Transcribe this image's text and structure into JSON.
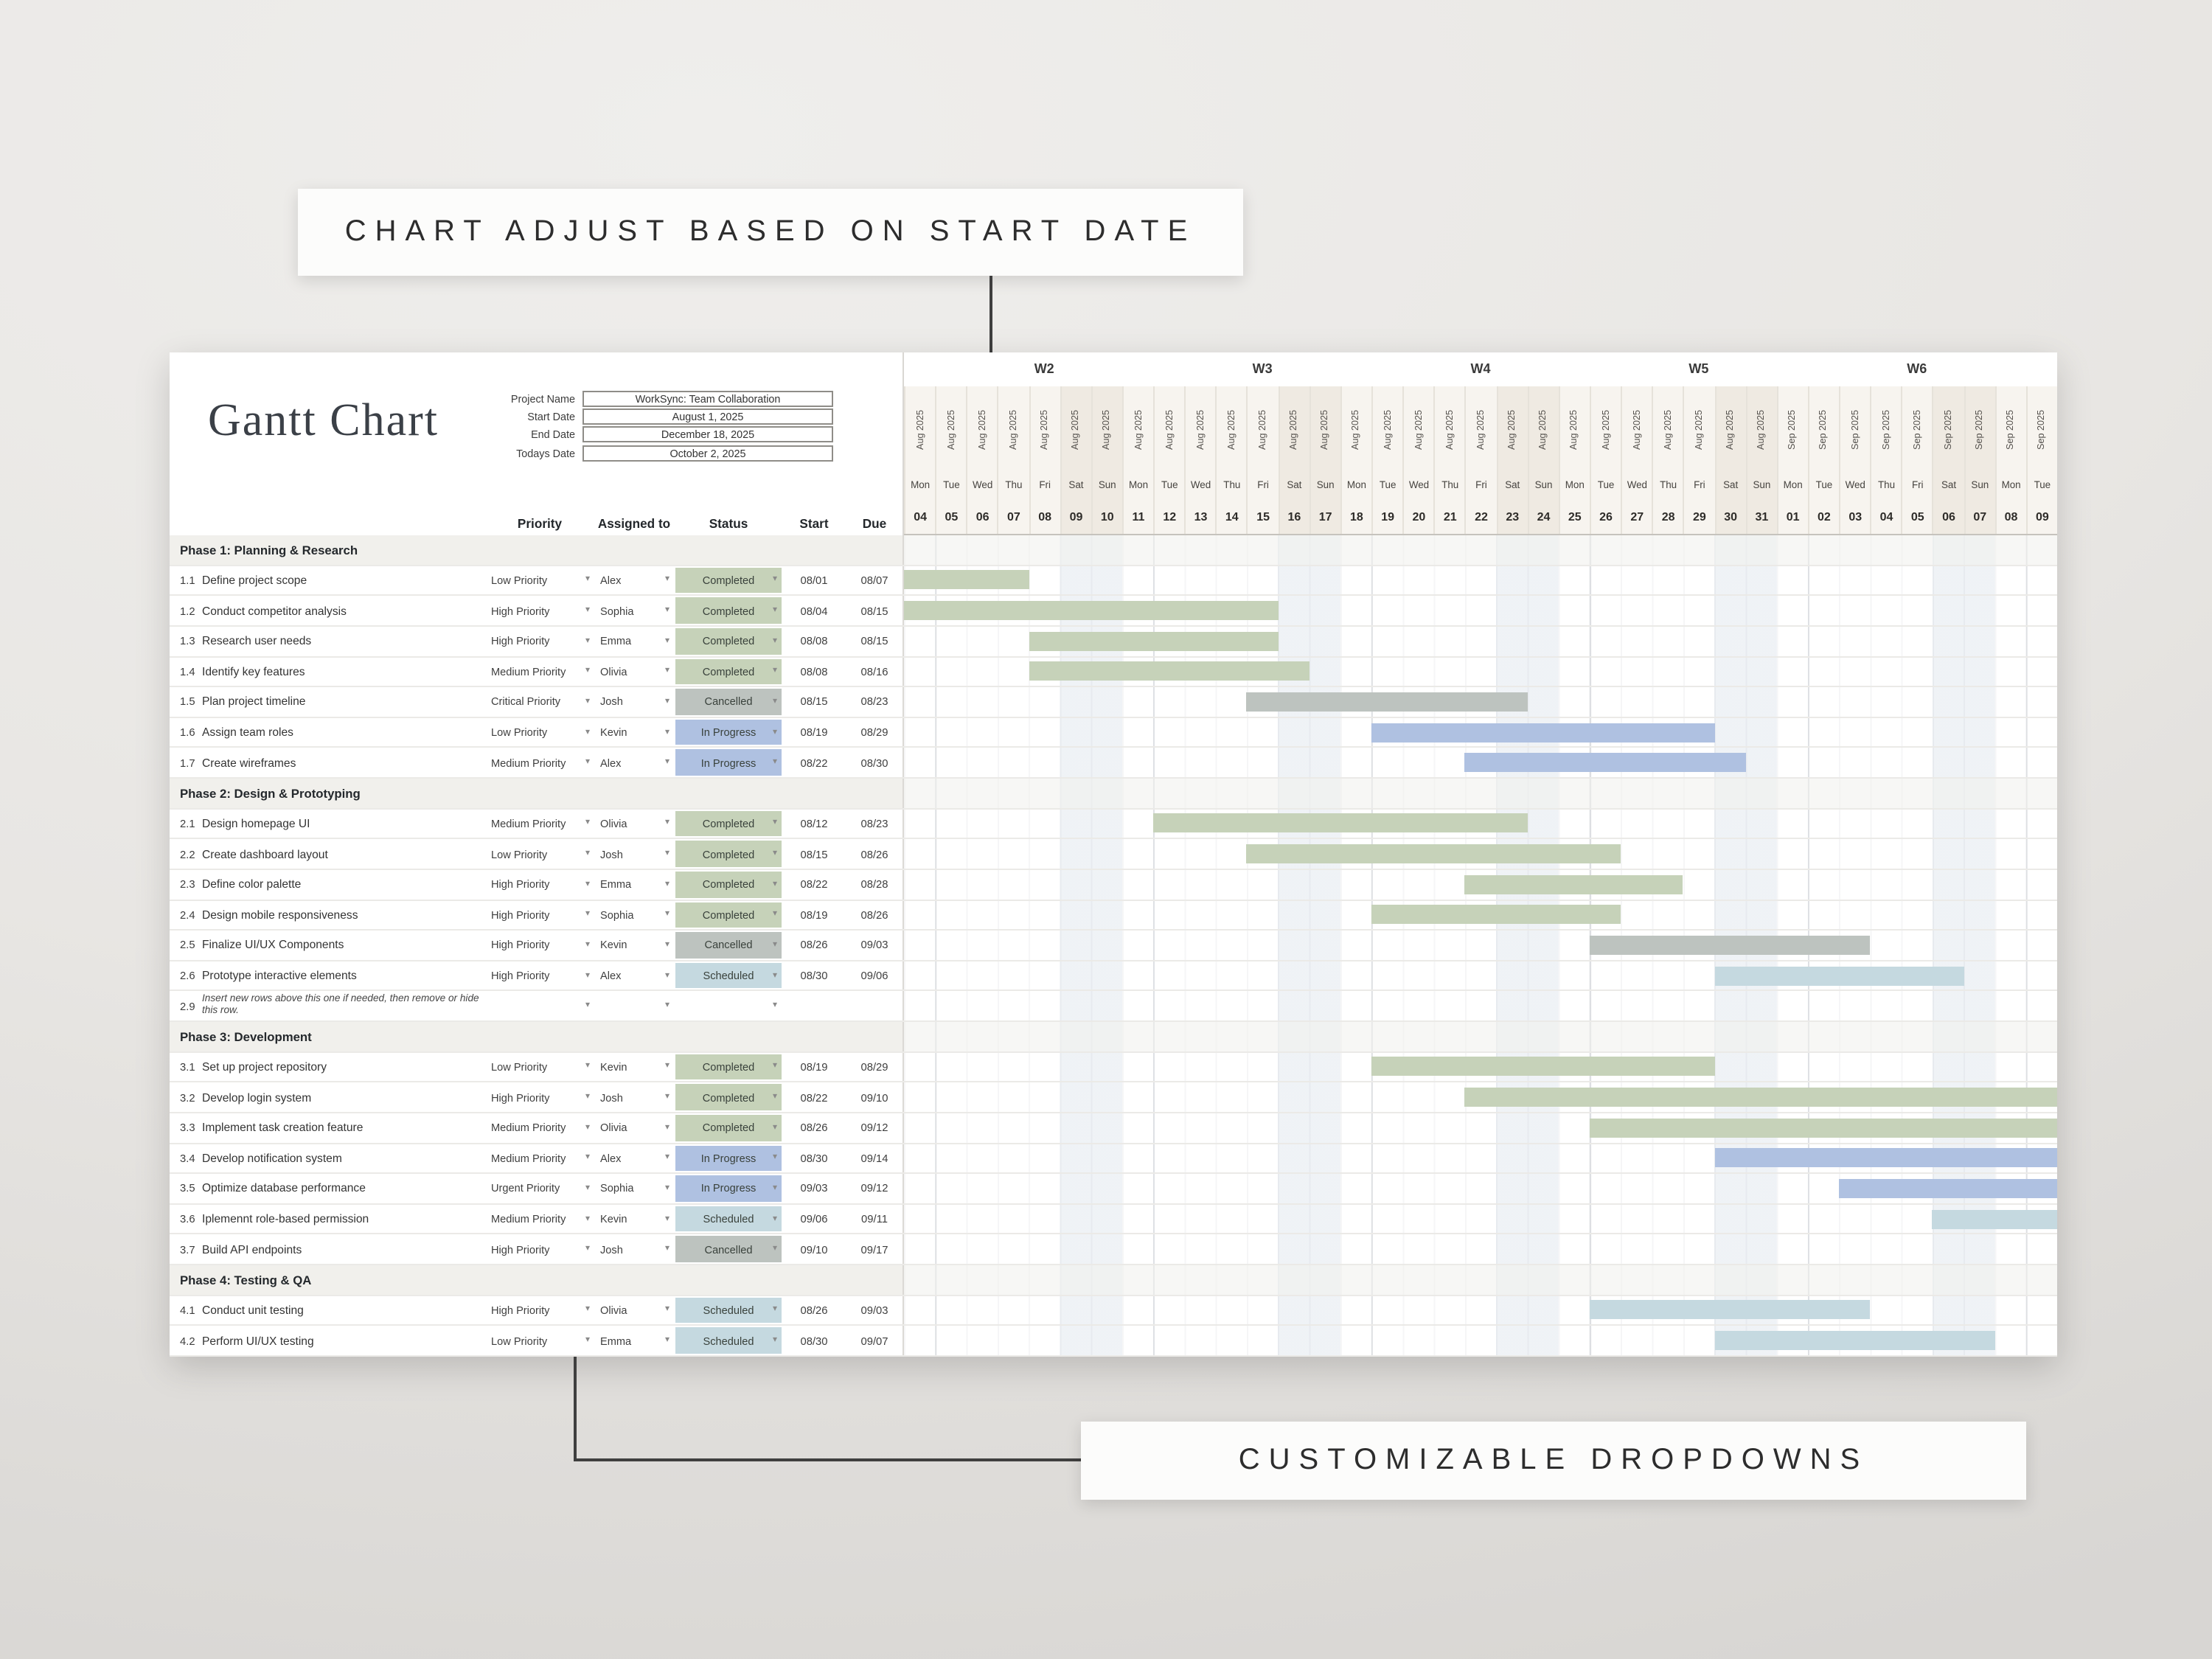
{
  "callouts": {
    "top": "CHART ADJUST BASED ON START DATE",
    "bottom": "CUSTOMIZABLE DROPDOWNS"
  },
  "sheet": {
    "title": "Gantt Chart",
    "project_info": [
      {
        "label": "Project Name",
        "value": "WorkSync: Team Collaboration"
      },
      {
        "label": "Start Date",
        "value": "August 1, 2025"
      },
      {
        "label": "End Date",
        "value": "December 18, 2025"
      },
      {
        "label": "Todays Date",
        "value": "October 2, 2025"
      }
    ],
    "columns": {
      "priority": "Priority",
      "assigned": "Assigned to",
      "status": "Status",
      "start": "Start",
      "due": "Due"
    }
  },
  "status_colors": {
    "Completed": "#c6d2b9",
    "Cancelled": "#bdc3bf",
    "In Progress": "#afc1e1",
    "Scheduled": "#c5d9e0"
  },
  "chart_data": {
    "type": "gantt",
    "timeline": {
      "weeks": [
        "W2",
        "W3",
        "W4",
        "W5",
        "W6"
      ],
      "months": [
        {
          "label": "Aug 2025",
          "month": 8,
          "days": 28
        },
        {
          "label": "Sep 2025",
          "month": 9,
          "days": 9
        }
      ],
      "days_of_week": [
        "Mon",
        "Tue",
        "Wed",
        "Thu",
        "Fri",
        "Sat",
        "Sun"
      ],
      "day_numbers": [
        "04",
        "05",
        "06",
        "07",
        "08",
        "09",
        "10",
        "11",
        "12",
        "13",
        "14",
        "15",
        "16",
        "17",
        "18",
        "19",
        "20",
        "21",
        "22",
        "23",
        "24",
        "25",
        "26",
        "27",
        "28",
        "29",
        "30",
        "31",
        "01",
        "02",
        "03",
        "04",
        "05",
        "06",
        "07",
        "08",
        "09"
      ]
    },
    "phases": [
      {
        "name": "Phase 1: Planning & Research",
        "tasks": [
          {
            "id": "1.1",
            "name": "Define project scope",
            "priority": "Low Priority",
            "assignee": "Alex",
            "status": "Completed",
            "start": "08/01",
            "due": "08/07"
          },
          {
            "id": "1.2",
            "name": "Conduct competitor analysis",
            "priority": "High Priority",
            "assignee": "Sophia",
            "status": "Completed",
            "start": "08/04",
            "due": "08/15"
          },
          {
            "id": "1.3",
            "name": "Research user needs",
            "priority": "High Priority",
            "assignee": "Emma",
            "status": "Completed",
            "start": "08/08",
            "due": "08/15"
          },
          {
            "id": "1.4",
            "name": "Identify key features",
            "priority": "Medium Priority",
            "assignee": "Olivia",
            "status": "Completed",
            "start": "08/08",
            "due": "08/16"
          },
          {
            "id": "1.5",
            "name": "Plan project timeline",
            "priority": "Critical Priority",
            "assignee": "Josh",
            "status": "Cancelled",
            "start": "08/15",
            "due": "08/23"
          },
          {
            "id": "1.6",
            "name": "Assign team roles",
            "priority": "Low Priority",
            "assignee": "Kevin",
            "status": "In Progress",
            "start": "08/19",
            "due": "08/29"
          },
          {
            "id": "1.7",
            "name": "Create wireframes",
            "priority": "Medium Priority",
            "assignee": "Alex",
            "status": "In Progress",
            "start": "08/22",
            "due": "08/30"
          }
        ]
      },
      {
        "name": "Phase 2: Design & Prototyping",
        "tasks": [
          {
            "id": "2.1",
            "name": "Design homepage UI",
            "priority": "Medium Priority",
            "assignee": "Olivia",
            "status": "Completed",
            "start": "08/12",
            "due": "08/23"
          },
          {
            "id": "2.2",
            "name": "Create dashboard layout",
            "priority": "Low Priority",
            "assignee": "Josh",
            "status": "Completed",
            "start": "08/15",
            "due": "08/26"
          },
          {
            "id": "2.3",
            "name": "Define color palette",
            "priority": "High Priority",
            "assignee": "Emma",
            "status": "Completed",
            "start": "08/22",
            "due": "08/28"
          },
          {
            "id": "2.4",
            "name": "Design mobile responsiveness",
            "priority": "High Priority",
            "assignee": "Sophia",
            "status": "Completed",
            "start": "08/19",
            "due": "08/26"
          },
          {
            "id": "2.5",
            "name": "Finalize UI/UX Components",
            "priority": "High Priority",
            "assignee": "Kevin",
            "status": "Cancelled",
            "start": "08/26",
            "due": "09/03"
          },
          {
            "id": "2.6",
            "name": "Prototype interactive elements",
            "priority": "High Priority",
            "assignee": "Alex",
            "status": "Scheduled",
            "start": "08/30",
            "due": "09/06"
          },
          {
            "id": "2.9",
            "name": "Insert new rows above this one if needed, then remove or hide this row.",
            "priority": "",
            "assignee": "",
            "status": "",
            "start": "",
            "due": "",
            "note": true
          }
        ]
      },
      {
        "name": "Phase 3: Development",
        "tasks": [
          {
            "id": "3.1",
            "name": "Set up project repository",
            "priority": "Low Priority",
            "assignee": "Kevin",
            "status": "Completed",
            "start": "08/19",
            "due": "08/29"
          },
          {
            "id": "3.2",
            "name": "Develop login system",
            "priority": "High Priority",
            "assignee": "Josh",
            "status": "Completed",
            "start": "08/22",
            "due": "09/10"
          },
          {
            "id": "3.3",
            "name": "Implement task creation feature",
            "priority": "Medium Priority",
            "assignee": "Olivia",
            "status": "Completed",
            "start": "08/26",
            "due": "09/12"
          },
          {
            "id": "3.4",
            "name": "Develop notification system",
            "priority": "Medium Priority",
            "assignee": "Alex",
            "status": "In Progress",
            "start": "08/30",
            "due": "09/14"
          },
          {
            "id": "3.5",
            "name": "Optimize database performance",
            "priority": "Urgent Priority",
            "assignee": "Sophia",
            "status": "In Progress",
            "start": "09/03",
            "due": "09/12"
          },
          {
            "id": "3.6",
            "name": "Iplemennt role-based permission",
            "priority": "Medium Priority",
            "assignee": "Kevin",
            "status": "Scheduled",
            "start": "09/06",
            "due": "09/11"
          },
          {
            "id": "3.7",
            "name": "Build API endpoints",
            "priority": "High Priority",
            "assignee": "Josh",
            "status": "Cancelled",
            "start": "09/10",
            "due": "09/17"
          }
        ]
      },
      {
        "name": "Phase 4: Testing & QA",
        "tasks": [
          {
            "id": "4.1",
            "name": "Conduct unit testing",
            "priority": "High Priority",
            "assignee": "Olivia",
            "status": "Scheduled",
            "start": "08/26",
            "due": "09/03"
          },
          {
            "id": "4.2",
            "name": "Perform UI/UX testing",
            "priority": "Low Priority",
            "assignee": "Emma",
            "status": "Scheduled",
            "start": "08/30",
            "due": "09/07"
          }
        ]
      }
    ]
  }
}
